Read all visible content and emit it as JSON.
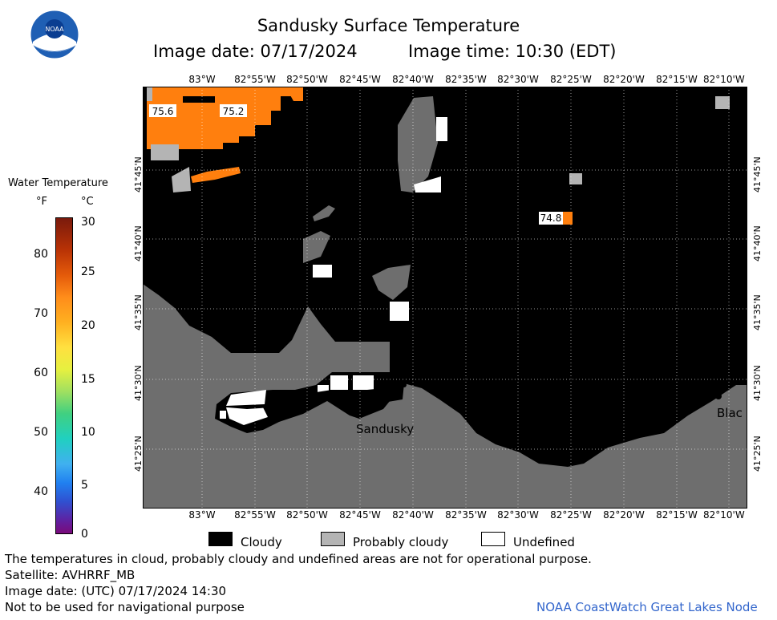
{
  "header": {
    "title": "Sandusky Surface Temperature",
    "image_date": "Image date: 07/17/2024",
    "image_time": "Image time: 10:30 (EDT)"
  },
  "logo": {
    "text": "NOAA"
  },
  "legend": {
    "title": "Water Temperature",
    "unit_f": "°F",
    "unit_c": "°C",
    "f_ticks": [
      "80",
      "70",
      "60",
      "50",
      "40"
    ],
    "c_ticks": [
      "30",
      "25",
      "20",
      "15",
      "10",
      "5",
      "0"
    ]
  },
  "map": {
    "lon_labels": [
      "83°W",
      "82°55'W",
      "82°50'W",
      "82°45'W",
      "82°40'W",
      "82°35'W",
      "82°30'W",
      "82°25'W",
      "82°20'W",
      "82°15'W",
      "82°10'W"
    ],
    "lat_labels": [
      "41°45'N",
      "41°40'N",
      "41°35'N",
      "41°30'N",
      "41°25'N"
    ],
    "place_labels": [
      "Sandusky",
      "Blac"
    ],
    "temperature_labels": [
      "75.6",
      "75.2",
      "74.8"
    ],
    "colors": {
      "cloud": "#000000",
      "land": "#6e6e6e",
      "probably_cloudy": "#b4b4b4",
      "warm_water": "#ff7f0e",
      "undefined": "#ffffff"
    }
  },
  "key": {
    "cloudy": "Cloudy",
    "probably_cloudy": "Probably cloudy",
    "undefined": "Undefined"
  },
  "footer": {
    "disclaimer": "The temperatures in cloud, probably cloudy and undefined areas are not for operational purpose.",
    "satellite": "Satellite: AVHRRF_MB",
    "utc_date": "Image date: (UTC) 07/17/2024  14:30",
    "nav_warning": "Not to be used for navigational purpose",
    "credit": "NOAA CoastWatch Great Lakes Node"
  }
}
